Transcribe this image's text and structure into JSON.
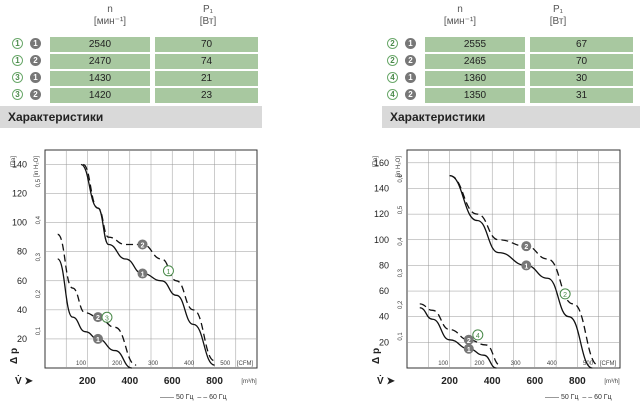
{
  "left_table": {
    "h_n": "n",
    "h_n_unit": "[мин⁻¹]",
    "h_p": "P₁",
    "h_p_unit": "[Вт]",
    "rows": [
      {
        "c": "1",
        "k": "1",
        "n": "2540",
        "p": "70"
      },
      {
        "c": "1",
        "k": "2",
        "n": "2470",
        "p": "74"
      },
      {
        "c": "3",
        "k": "1",
        "n": "1430",
        "p": "21"
      },
      {
        "c": "3",
        "k": "2",
        "n": "1420",
        "p": "23"
      }
    ]
  },
  "right_table": {
    "h_n": "n",
    "h_n_unit": "[мин⁻¹]",
    "h_p": "P₁",
    "h_p_unit": "[Вт]",
    "rows": [
      {
        "c": "2",
        "k": "1",
        "n": "2555",
        "p": "67"
      },
      {
        "c": "2",
        "k": "2",
        "n": "2465",
        "p": "70"
      },
      {
        "c": "4",
        "k": "1",
        "n": "1360",
        "p": "30"
      },
      {
        "c": "4",
        "k": "2",
        "n": "1350",
        "p": "31"
      }
    ]
  },
  "section_title_left": "Характеристики",
  "section_title_right": "Характеристики",
  "legend": {
    "s50": "50 Гц",
    "s60": "60 Гц"
  },
  "chart_data": [
    {
      "type": "line",
      "ylabel": "Δ p_fa [Па]",
      "ylabel2": "[in H₂O]",
      "x1_unit": "[m³/h]",
      "x2_unit": "[CFM]",
      "y_ticks": [
        20,
        40,
        60,
        80,
        100,
        120,
        140
      ],
      "y2_ticks": [
        "0,1",
        "0,2",
        "0,3",
        "0,4",
        "0,5"
      ],
      "x1_ticks": [
        200,
        400,
        600,
        800
      ],
      "x2_ticks": [
        100,
        200,
        300,
        400,
        500
      ],
      "xlim": [
        0,
        1000
      ],
      "ylim": [
        0,
        150
      ],
      "series": [
        {
          "circle": "1",
          "mark": "2",
          "x": [
            180,
            250,
            300,
            380,
            460,
            550,
            620,
            700,
            800
          ],
          "y": [
            140,
            110,
            90,
            85,
            85,
            75,
            60,
            40,
            5
          ]
        },
        {
          "circle": "1",
          "mark": "1",
          "x": [
            170,
            250,
            300,
            380,
            460,
            550,
            620,
            700,
            800
          ],
          "y": [
            140,
            110,
            85,
            75,
            65,
            60,
            50,
            30,
            2
          ]
        },
        {
          "circle": "3",
          "mark": "2",
          "x": [
            60,
            130,
            190,
            250,
            330,
            430
          ],
          "y": [
            92,
            55,
            38,
            35,
            28,
            2
          ]
        },
        {
          "circle": "3",
          "mark": "1",
          "x": [
            60,
            130,
            190,
            250,
            330,
            410
          ],
          "y": [
            75,
            35,
            25,
            20,
            12,
            0
          ]
        }
      ]
    },
    {
      "type": "line",
      "ylabel": "Δ p_fa [Па]",
      "ylabel2": "[in H₂O]",
      "x1_unit": "[m³/h]",
      "x2_unit": "[CFM]",
      "y_ticks": [
        20,
        40,
        60,
        80,
        100,
        120,
        140,
        160
      ],
      "y2_ticks": [
        "0,1",
        "0,2",
        "0,3",
        "0,4",
        "0,5",
        "0,6"
      ],
      "x1_ticks": [
        200,
        400,
        600,
        800
      ],
      "x2_ticks": [
        100,
        200,
        300,
        400,
        500
      ],
      "xlim": [
        0,
        1000
      ],
      "ylim": [
        0,
        170
      ],
      "series": [
        {
          "circle": "2",
          "mark": "2",
          "x": [
            200,
            330,
            430,
            560,
            660,
            780,
            900
          ],
          "y": [
            150,
            120,
            100,
            95,
            85,
            50,
            2
          ]
        },
        {
          "circle": "2",
          "mark": "1",
          "x": [
            200,
            330,
            430,
            560,
            660,
            760,
            870
          ],
          "y": [
            150,
            115,
            90,
            80,
            70,
            40,
            0
          ]
        },
        {
          "circle": "4",
          "mark": "2",
          "x": [
            60,
            120,
            200,
            290,
            370,
            440
          ],
          "y": [
            50,
            45,
            30,
            22,
            18,
            2
          ]
        },
        {
          "circle": "4",
          "mark": "1",
          "x": [
            60,
            120,
            200,
            290,
            360,
            420
          ],
          "y": [
            47,
            38,
            22,
            15,
            10,
            0
          ]
        }
      ]
    }
  ]
}
